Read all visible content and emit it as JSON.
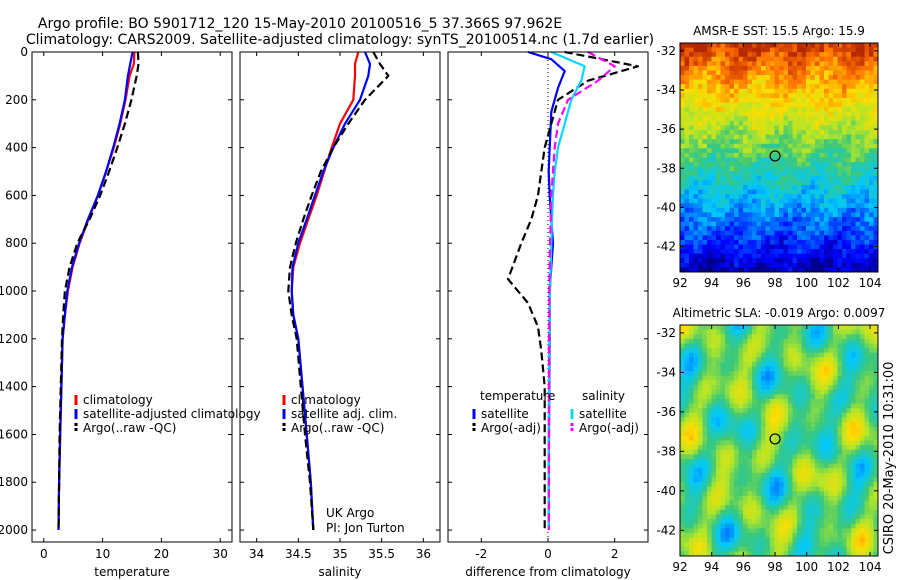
{
  "title": {
    "line1": "Argo profile: BO 5901712_120 15-May-2010 20100516_5 37.366S 97.962E",
    "line2": "Climatology: CARS2009. Satellite-adjusted climatology: synTS_20100514.nc (1.7d earlier)"
  },
  "side_label": "CSIRO 20-May-2010 10:31:00",
  "chart_data": [
    {
      "id": "temperature",
      "type": "line",
      "xlabel": "temperature",
      "xlim": [
        -2,
        32
      ],
      "ylim": [
        2050,
        0
      ],
      "xticks": [
        0,
        10,
        20,
        30
      ],
      "yticks": [
        0,
        200,
        400,
        600,
        800,
        1000,
        1200,
        1400,
        1600,
        1800,
        2000
      ],
      "legend": {
        "placement": "lower-center",
        "entries": [
          "climatology",
          "satellite-adjusted climatology",
          "Argo(..raw -QC)"
        ]
      },
      "series": [
        {
          "name": "climatology",
          "color": "#ff0000",
          "style": "solid",
          "x": [
            15.4,
            15.3,
            14.6,
            13.9,
            13.0,
            11.9,
            10.6,
            9.2,
            7.6,
            6.1,
            4.9,
            4.1,
            3.6,
            3.2,
            3.0,
            2.8,
            2.6,
            2.5
          ],
          "y": [
            0,
            50,
            100,
            200,
            300,
            400,
            500,
            600,
            700,
            800,
            900,
            1000,
            1100,
            1200,
            1400,
            1600,
            1800,
            2000
          ]
        },
        {
          "name": "satellite-adjusted climatology",
          "color": "#0000ff",
          "style": "solid",
          "x": [
            15.1,
            14.7,
            14.3,
            13.8,
            12.9,
            11.8,
            10.6,
            9.2,
            7.5,
            6.0,
            4.8,
            4.0,
            3.6,
            3.2,
            3.0,
            2.8,
            2.6,
            2.5
          ],
          "y": [
            0,
            50,
            100,
            200,
            300,
            400,
            500,
            600,
            700,
            800,
            900,
            1000,
            1100,
            1200,
            1400,
            1600,
            1800,
            2000
          ]
        },
        {
          "name": "Argo(..raw -QC)",
          "color": "#000000",
          "style": "dash",
          "x": [
            16.0,
            16.1,
            15.8,
            14.9,
            13.8,
            12.5,
            11.1,
            9.6,
            7.8,
            5.7,
            4.4,
            3.6,
            3.3,
            3.1,
            2.9,
            2.7,
            2.6,
            2.5
          ],
          "y": [
            0,
            50,
            100,
            200,
            300,
            400,
            500,
            600,
            700,
            800,
            900,
            1000,
            1100,
            1200,
            1400,
            1600,
            1800,
            2000
          ]
        }
      ]
    },
    {
      "id": "salinity",
      "type": "line",
      "xlabel": "salinity",
      "xlim": [
        33.8,
        36.2
      ],
      "ylim": [
        2050,
        0
      ],
      "xticks": [
        34,
        34.5,
        35,
        35.5,
        36
      ],
      "yticks": [
        0,
        200,
        400,
        600,
        800,
        1000,
        1200,
        1400,
        1600,
        1800,
        2000
      ],
      "legend": {
        "placement": "lower-center",
        "entries": [
          "climatology",
          "satellite adj. clim.",
          "Argo(..raw -QC)"
        ]
      },
      "annotation": [
        "UK Argo",
        "PI: Jon Turton"
      ],
      "series": [
        {
          "name": "climatology",
          "color": "#ff0000",
          "style": "solid",
          "x": [
            35.22,
            35.18,
            35.18,
            35.16,
            35.0,
            34.9,
            34.81,
            34.72,
            34.62,
            34.52,
            34.44,
            34.42,
            34.44,
            34.5,
            34.55,
            34.6,
            34.65,
            34.68
          ],
          "y": [
            0,
            50,
            100,
            200,
            300,
            400,
            500,
            600,
            700,
            800,
            900,
            1000,
            1100,
            1200,
            1400,
            1600,
            1800,
            2000
          ]
        },
        {
          "name": "satellite adj. clim.",
          "color": "#0000ff",
          "style": "solid",
          "x": [
            35.3,
            35.36,
            35.34,
            35.24,
            35.06,
            34.92,
            34.8,
            34.7,
            34.6,
            34.5,
            34.43,
            34.42,
            34.44,
            34.5,
            34.55,
            34.6,
            34.65,
            34.68
          ],
          "y": [
            0,
            50,
            100,
            200,
            300,
            400,
            500,
            600,
            700,
            800,
            900,
            1000,
            1100,
            1200,
            1400,
            1600,
            1800,
            2000
          ]
        },
        {
          "name": "Argo(..raw -QC)",
          "color": "#000000",
          "style": "dash",
          "x": [
            35.4,
            35.48,
            35.58,
            35.3,
            35.1,
            34.92,
            34.77,
            34.66,
            34.56,
            34.47,
            34.4,
            34.38,
            34.42,
            34.48,
            34.53,
            34.58,
            34.64,
            34.68
          ],
          "y": [
            0,
            50,
            100,
            200,
            300,
            400,
            500,
            600,
            700,
            800,
            900,
            1000,
            1100,
            1200,
            1400,
            1600,
            1800,
            2000
          ]
        }
      ]
    },
    {
      "id": "difference",
      "type": "line",
      "xlabel": "difference from climatology",
      "xlim": [
        -3,
        3
      ],
      "ylim": [
        2050,
        0
      ],
      "xticks": [
        -2,
        0,
        2
      ],
      "yticks": [
        0,
        200,
        400,
        600,
        800,
        1000,
        1200,
        1400,
        1600,
        1800,
        2000
      ],
      "zero_line": true,
      "legend": {
        "placement": "lower-center",
        "groups": [
          {
            "title": "temperature",
            "entries": [
              "satellite",
              "Argo(-adj)"
            ]
          },
          {
            "title": "salinity",
            "entries": [
              "satellite",
              "Argo(-adj)"
            ]
          }
        ]
      },
      "series": [
        {
          "name": "temperature satellite",
          "color": "#0000ff",
          "style": "solid",
          "x": [
            -0.6,
            0.1,
            0.5,
            0.3,
            0.1,
            0.05,
            0.02,
            0.05,
            0.1,
            0.15,
            0.1,
            0.05,
            0.05,
            0.05,
            0.04,
            0.03,
            0.02,
            0.02
          ],
          "y": [
            0,
            30,
            80,
            150,
            250,
            400,
            500,
            600,
            700,
            800,
            900,
            1000,
            1100,
            1200,
            1400,
            1600,
            1800,
            2000
          ]
        },
        {
          "name": "temperature Argo(-adj)",
          "color": "#000000",
          "style": "dash",
          "x": [
            0.5,
            2.7,
            1.2,
            0.3,
            0.1,
            -0.1,
            -0.2,
            -0.3,
            -0.5,
            -0.8,
            -1.2,
            -0.6,
            -0.3,
            -0.2,
            -0.1,
            -0.1,
            -0.1,
            -0.1
          ],
          "y": [
            0,
            60,
            120,
            200,
            300,
            400,
            500,
            600,
            700,
            800,
            950,
            1050,
            1150,
            1250,
            1400,
            1600,
            1800,
            2000
          ]
        },
        {
          "name": "salinity satellite",
          "color": "#00d8ff",
          "style": "solid",
          "x": [
            0.1,
            1.1,
            1.0,
            0.7,
            0.5,
            0.3,
            0.2,
            0.15,
            0.12,
            0.1,
            0.08,
            0.06,
            0.05,
            0.04,
            0.03,
            0.02,
            0.02,
            0.02
          ],
          "y": [
            0,
            60,
            120,
            200,
            300,
            400,
            500,
            600,
            700,
            800,
            900,
            1000,
            1100,
            1200,
            1400,
            1600,
            1800,
            2000
          ]
        },
        {
          "name": "salinity Argo(-adj)",
          "color": "#ff00ff",
          "style": "dash",
          "x": [
            1.2,
            2.0,
            1.5,
            0.6,
            0.3,
            0.2,
            0.15,
            0.1,
            0.08,
            0.06,
            0.05,
            0.04,
            0.04,
            0.03,
            0.03,
            0.03,
            0.03,
            0.03
          ],
          "y": [
            0,
            60,
            120,
            200,
            300,
            400,
            500,
            600,
            700,
            800,
            900,
            1000,
            1100,
            1200,
            1400,
            1600,
            1800,
            2000
          ]
        }
      ]
    },
    {
      "id": "sst_map",
      "type": "heatmap",
      "title": "AMSR-E SST: 15.5 Argo: 15.9",
      "xlim": [
        92,
        104.5
      ],
      "ylim": [
        -43.3,
        -31.6
      ],
      "xticks": [
        92,
        94,
        96,
        98,
        100,
        102,
        104
      ],
      "yticks": [
        -32,
        -34,
        -36,
        -38,
        -40,
        -42
      ],
      "marker": {
        "x": 98,
        "y": -37.37
      }
    },
    {
      "id": "sla_map",
      "type": "heatmap",
      "title": "Altimetric SLA: -0.019 Argo: 0.0097",
      "xlim": [
        92,
        104.5
      ],
      "ylim": [
        -43.3,
        -31.6
      ],
      "xticks": [
        92,
        94,
        96,
        98,
        100,
        102,
        104
      ],
      "yticks": [
        -32,
        -34,
        -36,
        -38,
        -40,
        -42
      ],
      "marker": {
        "x": 98,
        "y": -37.37
      }
    }
  ]
}
